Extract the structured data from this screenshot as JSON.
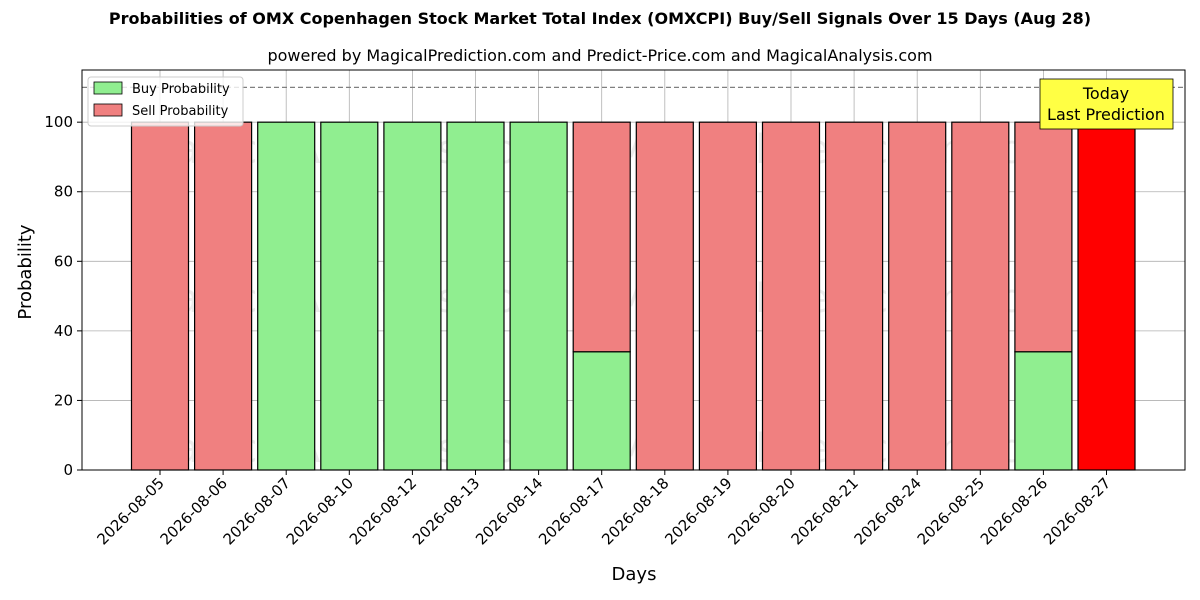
{
  "header": {
    "title": "Probabilities of OMX Copenhagen Stock Market Total Index (OMXCPI) Buy/Sell Signals Over 15 Days (Aug 28)",
    "subtitle": "powered by MagicalPrediction.com and Predict-Price.com and MagicalAnalysis.com"
  },
  "watermarks": [
    "MagicalAnalysis.com",
    "MagicalPrediction.com"
  ],
  "annotation": {
    "line1": "Today",
    "line2": "Last Prediction"
  },
  "colors": {
    "buy": "#90ee90",
    "sell": "#f08080",
    "today": "#ff0000",
    "annotation_bg": "#ffff44"
  },
  "chart_data": {
    "type": "bar",
    "stacked": true,
    "categories": [
      "2026-08-05",
      "2026-08-06",
      "2026-08-07",
      "2026-08-10",
      "2026-08-12",
      "2026-08-13",
      "2026-08-14",
      "2026-08-17",
      "2026-08-18",
      "2026-08-19",
      "2026-08-20",
      "2026-08-21",
      "2026-08-24",
      "2026-08-25",
      "2026-08-26",
      "2026-08-27"
    ],
    "series": [
      {
        "name": "Buy Probability",
        "values": [
          0,
          0,
          100,
          100,
          100,
          100,
          100,
          34,
          0,
          0,
          0,
          0,
          0,
          0,
          34,
          0
        ]
      },
      {
        "name": "Sell Probability",
        "values": [
          100,
          100,
          0,
          0,
          0,
          0,
          0,
          66,
          100,
          100,
          100,
          100,
          100,
          100,
          66,
          100
        ]
      }
    ],
    "xlabel": "Days",
    "ylabel": "Probability",
    "ylim": [
      0,
      115
    ],
    "yticks": [
      0,
      20,
      40,
      60,
      80,
      100
    ],
    "reference_line": 110,
    "grid": true,
    "legend": "top-left"
  }
}
